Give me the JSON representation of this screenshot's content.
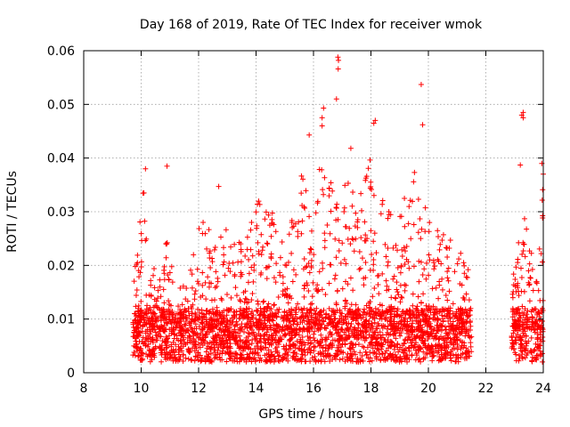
{
  "chart_data": {
    "type": "scatter",
    "title": "Day 168 of 2019, Rate Of TEC Index for receiver wmok",
    "xlabel": "GPS time / hours",
    "ylabel": "ROTI / TECUs",
    "xlim": [
      8,
      24
    ],
    "ylim": [
      0,
      0.06
    ],
    "grid": true,
    "marker": "+",
    "marker_color": "#ff0000",
    "x_ticks": [
      8,
      10,
      12,
      14,
      16,
      18,
      20,
      22,
      24
    ],
    "x_tick_labels": [
      "8",
      "10",
      "12",
      "14",
      "16",
      "18",
      "20",
      "22",
      "24"
    ],
    "y_ticks": [
      0,
      0.01,
      0.02,
      0.03,
      0.04,
      0.05,
      0.06
    ],
    "y_tick_labels": [
      "0",
      "0.01",
      "0.02",
      "0.03",
      "0.04",
      "0.05",
      "0.06"
    ],
    "series": [
      {
        "name": "ROTI",
        "segments": [
          {
            "x_range": [
              9.7,
              21.5
            ],
            "baseline": [
              0.002,
              0.012
            ]
          },
          {
            "x_range": [
              22.9,
              24.0
            ],
            "baseline": [
              0.002,
              0.012
            ]
          }
        ],
        "envelope": [
          {
            "x": 9.7,
            "y": 0.018
          },
          {
            "x": 9.9,
            "y": 0.026
          },
          {
            "x": 10.1,
            "y": 0.035
          },
          {
            "x": 10.3,
            "y": 0.021
          },
          {
            "x": 10.7,
            "y": 0.017
          },
          {
            "x": 10.9,
            "y": 0.027
          },
          {
            "x": 11.2,
            "y": 0.016
          },
          {
            "x": 11.8,
            "y": 0.022
          },
          {
            "x": 12.1,
            "y": 0.03
          },
          {
            "x": 12.5,
            "y": 0.025
          },
          {
            "x": 13.0,
            "y": 0.027
          },
          {
            "x": 13.5,
            "y": 0.024
          },
          {
            "x": 14.0,
            "y": 0.034
          },
          {
            "x": 14.6,
            "y": 0.03
          },
          {
            "x": 15.0,
            "y": 0.024
          },
          {
            "x": 15.6,
            "y": 0.039
          },
          {
            "x": 16.0,
            "y": 0.03
          },
          {
            "x": 16.3,
            "y": 0.045
          },
          {
            "x": 16.8,
            "y": 0.033
          },
          {
            "x": 17.2,
            "y": 0.038
          },
          {
            "x": 17.5,
            "y": 0.031
          },
          {
            "x": 18.0,
            "y": 0.041
          },
          {
            "x": 18.3,
            "y": 0.035
          },
          {
            "x": 18.8,
            "y": 0.028
          },
          {
            "x": 19.5,
            "y": 0.038
          },
          {
            "x": 20.0,
            "y": 0.029
          },
          {
            "x": 20.5,
            "y": 0.027
          },
          {
            "x": 21.0,
            "y": 0.024
          },
          {
            "x": 21.5,
            "y": 0.02
          },
          {
            "x": 22.9,
            "y": 0.017
          },
          {
            "x": 23.3,
            "y": 0.03
          },
          {
            "x": 23.7,
            "y": 0.02
          },
          {
            "x": 24.0,
            "y": 0.036
          }
        ],
        "outliers": [
          {
            "x": 10.9,
            "y": 0.0385
          },
          {
            "x": 10.15,
            "y": 0.038
          },
          {
            "x": 12.7,
            "y": 0.0347
          },
          {
            "x": 16.85,
            "y": 0.0588
          },
          {
            "x": 16.87,
            "y": 0.0582
          },
          {
            "x": 16.86,
            "y": 0.0566
          },
          {
            "x": 16.8,
            "y": 0.051
          },
          {
            "x": 19.75,
            "y": 0.0537
          },
          {
            "x": 19.8,
            "y": 0.0462
          },
          {
            "x": 16.35,
            "y": 0.0493
          },
          {
            "x": 16.3,
            "y": 0.0475
          },
          {
            "x": 16.3,
            "y": 0.046
          },
          {
            "x": 15.85,
            "y": 0.0443
          },
          {
            "x": 18.15,
            "y": 0.047
          },
          {
            "x": 18.1,
            "y": 0.0465
          },
          {
            "x": 17.3,
            "y": 0.0418
          },
          {
            "x": 23.3,
            "y": 0.0485
          },
          {
            "x": 23.25,
            "y": 0.048
          },
          {
            "x": 23.3,
            "y": 0.0475
          },
          {
            "x": 23.2,
            "y": 0.0387
          },
          {
            "x": 23.95,
            "y": 0.039
          },
          {
            "x": 24.0,
            "y": 0.037
          }
        ]
      }
    ]
  }
}
